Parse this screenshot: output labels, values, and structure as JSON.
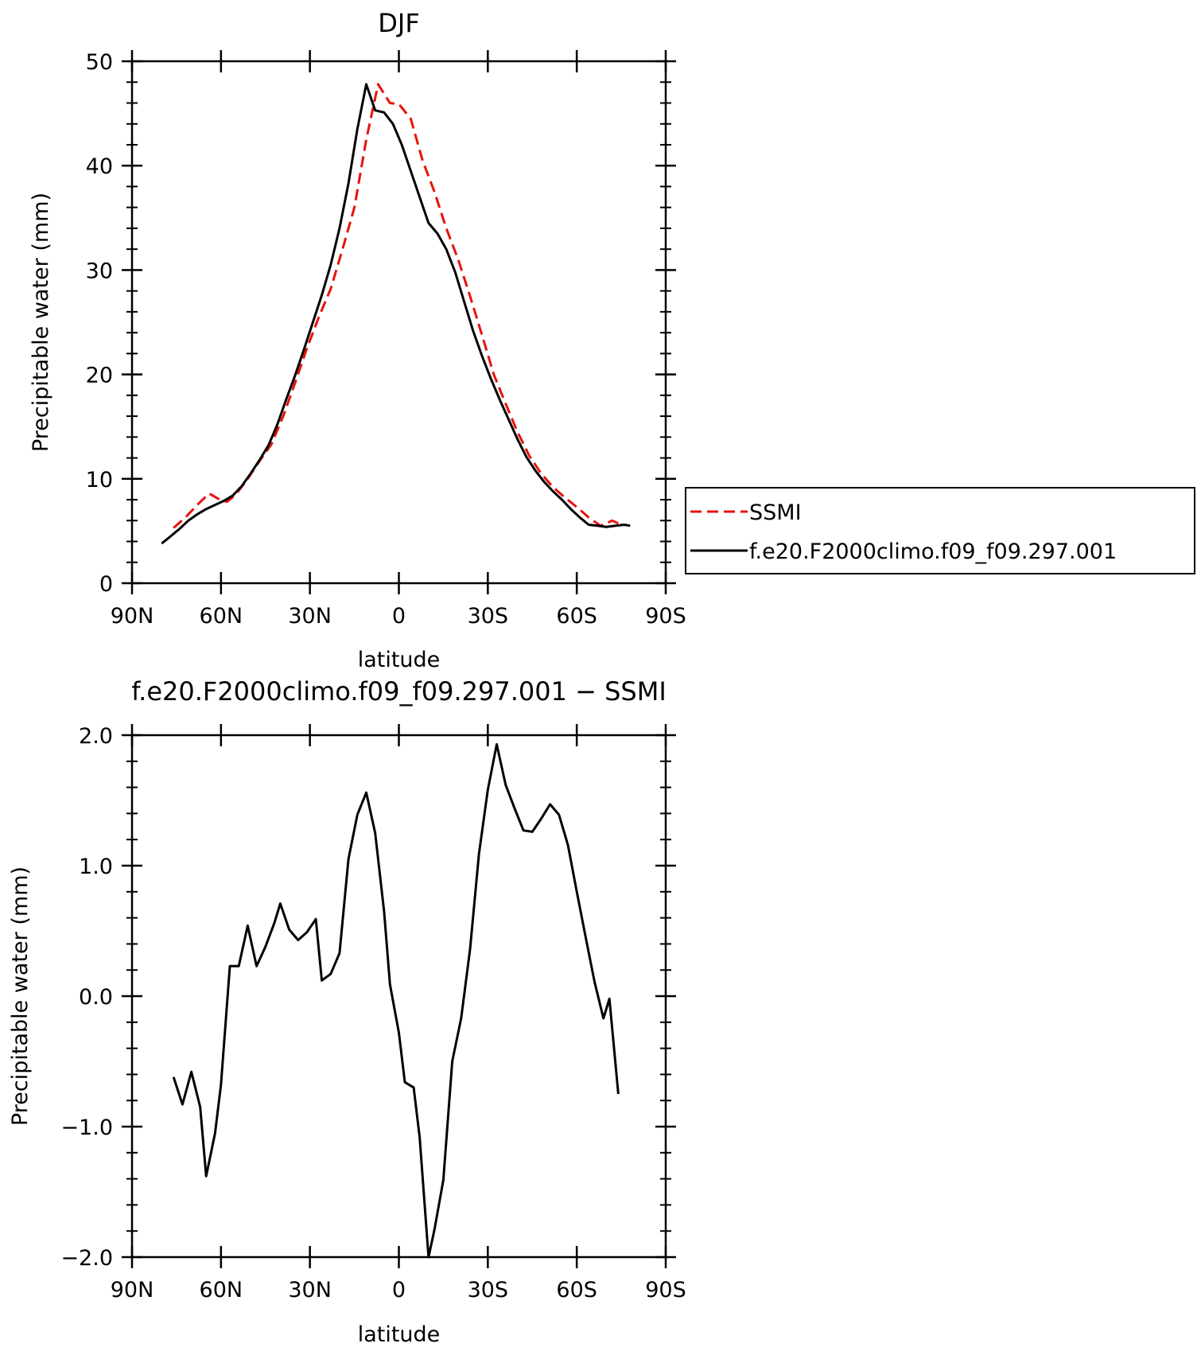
{
  "chart_data": [
    {
      "type": "line",
      "title": "DJF",
      "xlabel": "latitude",
      "ylabel": "Precipitable water (mm)",
      "xlim": [
        90,
        -90
      ],
      "ylim": [
        0,
        50
      ],
      "xticks": [
        90,
        60,
        30,
        0,
        -30,
        -60,
        -90
      ],
      "xtick_labels": [
        "90N",
        "60N",
        "30N",
        "0",
        "30S",
        "60S",
        "90S"
      ],
      "yticks": [
        0,
        10,
        20,
        30,
        40,
        50
      ],
      "ytick_labels": [
        "0",
        "10",
        "20",
        "30",
        "40",
        "50"
      ],
      "legend": "right",
      "series": [
        {
          "name": "SSMI",
          "color": "#e8120c",
          "dash": true,
          "x": [
            76,
            72,
            68,
            64,
            61,
            58,
            55,
            51,
            47,
            43,
            39,
            35,
            31,
            27,
            23,
            19,
            15,
            11,
            7,
            3,
            0,
            -4,
            -8,
            -12,
            -16,
            -20,
            -24,
            -28,
            -32,
            -36,
            -40,
            -44,
            -48,
            -52,
            -56,
            -60,
            -64,
            -68,
            -72,
            -75
          ],
          "values": [
            5.3,
            6.3,
            7.5,
            8.6,
            8.1,
            7.8,
            8.5,
            10.0,
            11.7,
            13.3,
            16.0,
            19.2,
            22.5,
            25.5,
            28.2,
            32.0,
            36.0,
            42.5,
            47.8,
            46.0,
            45.9,
            44.5,
            40.5,
            37.5,
            34.0,
            31.0,
            27.5,
            23.8,
            20.0,
            17.2,
            14.5,
            12.2,
            10.5,
            9.2,
            8.2,
            7.3,
            6.3,
            5.5,
            6.0,
            5.6
          ]
        },
        {
          "name": "f.e20.F2000climo.f09_f09.297.001",
          "color": "#000000",
          "dash": false,
          "x": [
            80,
            77,
            74,
            71,
            68,
            65,
            62,
            59,
            56,
            53,
            50,
            47,
            44,
            41,
            38,
            35,
            32,
            29,
            26,
            23,
            20,
            17,
            14,
            11,
            8,
            5,
            2,
            -1,
            -4,
            -7,
            -10,
            -13,
            -16,
            -19,
            -22,
            -25,
            -28,
            -31,
            -34,
            -37,
            -40,
            -43,
            -46,
            -49,
            -52,
            -55,
            -58,
            -61,
            -64,
            -67,
            -70,
            -73,
            -76,
            -78
          ],
          "values": [
            3.8,
            4.5,
            5.2,
            6.0,
            6.6,
            7.1,
            7.5,
            7.9,
            8.4,
            9.3,
            10.5,
            11.8,
            13.2,
            15.2,
            17.6,
            19.9,
            22.4,
            25.0,
            27.6,
            30.5,
            34.0,
            38.3,
            43.5,
            47.8,
            45.3,
            45.1,
            44.0,
            42.0,
            39.5,
            37.0,
            34.5,
            33.5,
            32.0,
            29.8,
            27.0,
            24.2,
            21.8,
            19.6,
            17.6,
            15.7,
            13.8,
            12.1,
            10.8,
            9.7,
            8.8,
            8.0,
            7.1,
            6.3,
            5.6,
            5.5,
            5.4,
            5.5,
            5.6,
            5.5
          ]
        }
      ]
    },
    {
      "type": "line",
      "title": "f.e20.F2000climo.f09_f09.297.001 − SSMI",
      "xlabel": "latitude",
      "ylabel": "Precipitable water (mm)",
      "xlim": [
        90,
        -90
      ],
      "ylim": [
        -2.0,
        2.0
      ],
      "xticks": [
        90,
        60,
        30,
        0,
        -30,
        -60,
        -90
      ],
      "xtick_labels": [
        "90N",
        "60N",
        "30N",
        "0",
        "30S",
        "60S",
        "90S"
      ],
      "yticks": [
        -2.0,
        -1.0,
        0.0,
        1.0,
        2.0
      ],
      "ytick_labels": [
        "−2.0",
        "−1.0",
        "0.0",
        "1.0",
        "2.0"
      ],
      "series": [
        {
          "color": "#000000",
          "dash": false,
          "x": [
            76,
            73,
            70,
            67,
            65,
            62,
            60,
            57,
            54,
            51,
            48,
            45,
            42,
            40,
            37,
            34,
            31,
            28,
            26,
            23,
            20,
            17,
            14,
            11,
            8,
            5,
            3,
            0,
            -2,
            -5,
            -7,
            -10,
            -12,
            -15,
            -18,
            -21,
            -24,
            -27,
            -30,
            -33,
            -36,
            -39,
            -42,
            -45,
            -48,
            -51,
            -54,
            -57,
            -60,
            -63,
            -66,
            -69,
            -71,
            -74
          ],
          "values": [
            -0.62,
            -0.83,
            -0.58,
            -0.85,
            -1.38,
            -1.05,
            -0.68,
            0.23,
            0.23,
            0.54,
            0.23,
            0.38,
            0.56,
            0.71,
            0.51,
            0.43,
            0.49,
            0.59,
            0.12,
            0.17,
            0.33,
            1.05,
            1.39,
            1.56,
            1.25,
            0.65,
            0.09,
            -0.28,
            -0.66,
            -0.7,
            -1.08,
            -2.0,
            -1.79,
            -1.41,
            -0.5,
            -0.17,
            0.36,
            1.09,
            1.58,
            1.93,
            1.62,
            1.44,
            1.27,
            1.26,
            1.36,
            1.47,
            1.39,
            1.16,
            0.8,
            0.45,
            0.11,
            -0.17,
            -0.02,
            -0.75
          ]
        }
      ]
    }
  ]
}
